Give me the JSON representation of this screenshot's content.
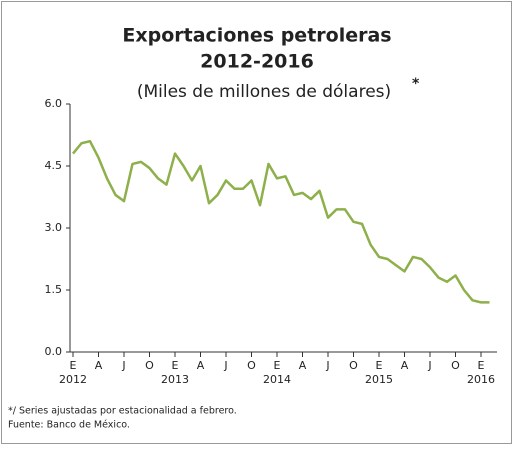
{
  "chart_data": {
    "type": "line",
    "title": "Exportaciones petroleras",
    "subtitle_years": "2012-2016",
    "subtitle": "(Miles de millones de dólares)",
    "subtitle_mark": "*",
    "categories": [
      "E",
      null,
      null,
      "A",
      null,
      null,
      "J",
      null,
      null,
      "O",
      null,
      null,
      "E",
      null,
      null,
      "A",
      null,
      null,
      "J",
      null,
      null,
      "O",
      null,
      null,
      "E",
      null,
      null,
      "A",
      null,
      null,
      "J",
      null,
      null,
      "O",
      null,
      null,
      "E",
      null,
      null,
      "A",
      null,
      null,
      "J",
      null,
      null,
      "O",
      null,
      null,
      "E",
      null
    ],
    "year_labels": [
      "2012",
      null,
      null,
      null,
      null,
      null,
      null,
      null,
      null,
      null,
      null,
      null,
      "2013",
      null,
      null,
      null,
      null,
      null,
      null,
      null,
      null,
      null,
      null,
      null,
      "2014",
      null,
      null,
      null,
      null,
      null,
      null,
      null,
      null,
      null,
      null,
      null,
      "2015",
      null,
      null,
      null,
      null,
      null,
      null,
      null,
      null,
      null,
      null,
      null,
      "2016",
      null
    ],
    "series": [
      {
        "color": "#8db04a",
        "values": [
          4.8,
          5.05,
          5.1,
          4.7,
          4.2,
          3.8,
          3.65,
          4.55,
          4.6,
          4.45,
          4.2,
          4.05,
          4.8,
          4.5,
          4.15,
          4.5,
          3.6,
          3.8,
          4.15,
          3.95,
          3.95,
          4.15,
          3.55,
          4.55,
          4.2,
          4.25,
          3.8,
          3.85,
          3.7,
          3.9,
          3.25,
          3.45,
          3.45,
          3.15,
          3.1,
          2.6,
          2.3,
          2.25,
          2.1,
          1.95,
          2.3,
          2.25,
          2.05,
          1.8,
          1.7,
          1.85,
          1.5,
          1.25,
          1.2,
          1.2
        ]
      }
    ],
    "ylim": [
      0,
      6
    ],
    "yticks": [
      {
        "value": 0,
        "label": "0.0"
      },
      1.5,
      {
        "value": 3,
        "label": "3.0"
      },
      4.5,
      {
        "value": 6,
        "label": "6.0"
      }
    ],
    "notes": [
      "*/ Series ajustadas por estacionalidad a febrero.",
      "Fuente: Banco de México."
    ]
  }
}
